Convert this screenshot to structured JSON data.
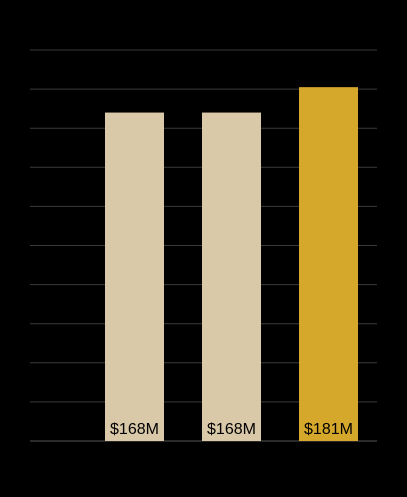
{
  "chart_data": {
    "type": "bar",
    "categories": [
      null,
      null,
      null
    ],
    "values": [
      168,
      168,
      181
    ],
    "value_labels": [
      "$168M",
      "$168M",
      "$181M"
    ],
    "colors": [
      "#d9c9a9",
      "#d9c9a9",
      "#d5a82c"
    ],
    "ylim": [
      0,
      200
    ],
    "yticks": [
      0,
      20,
      40,
      60,
      80,
      100,
      120,
      140,
      160,
      180,
      200
    ],
    "grid": true
  }
}
